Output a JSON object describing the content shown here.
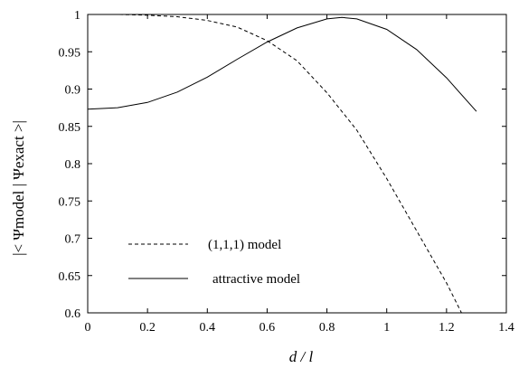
{
  "chart_data": {
    "type": "line",
    "xlabel": "d / l",
    "ylabel": "|< Ψmodel | Ψexact >|",
    "xlim": [
      0,
      1.4
    ],
    "ylim": [
      0.6,
      1
    ],
    "xticks": [
      "0",
      "0.2",
      "0.4",
      "0.6",
      "0.8",
      "1",
      "1.2",
      "1.4"
    ],
    "yticks": [
      "0.6",
      "0.65",
      "0.7",
      "0.75",
      "0.8",
      "0.85",
      "0.9",
      "0.95",
      "1"
    ],
    "legend_position": "lower-left",
    "grid": false,
    "series": [
      {
        "name": "(1,1,1)  model",
        "style": "dashed",
        "color": "#000000",
        "x": [
          0,
          0.1,
          0.2,
          0.3,
          0.4,
          0.5,
          0.6,
          0.7,
          0.8,
          0.9,
          1.0,
          1.1,
          1.2,
          1.25
        ],
        "y": [
          1.0,
          1.0,
          0.999,
          0.997,
          0.992,
          0.983,
          0.965,
          0.938,
          0.895,
          0.845,
          0.78,
          0.71,
          0.64,
          0.6
        ]
      },
      {
        "name": "attractive model",
        "style": "solid",
        "color": "#000000",
        "x": [
          0,
          0.1,
          0.2,
          0.3,
          0.4,
          0.5,
          0.6,
          0.7,
          0.8,
          0.85,
          0.9,
          1.0,
          1.1,
          1.2,
          1.3
        ],
        "y": [
          0.873,
          0.875,
          0.882,
          0.896,
          0.916,
          0.94,
          0.963,
          0.982,
          0.994,
          0.996,
          0.994,
          0.98,
          0.953,
          0.915,
          0.87
        ]
      }
    ]
  }
}
